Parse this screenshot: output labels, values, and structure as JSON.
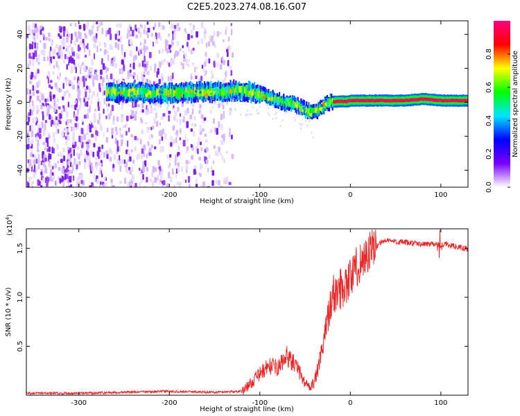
{
  "title": "C2E5.2023.274.08.16.G07",
  "chart_data": [
    {
      "type": "heatmap",
      "xlabel": "Height of straight line (km)",
      "ylabel": "Frequency (Hz)",
      "xlim": [
        -358,
        130
      ],
      "ylim": [
        -50,
        48
      ],
      "x_ticks": [
        -300,
        -200,
        -100,
        0,
        100
      ],
      "x_tick_labels": [
        "-300",
        "-200",
        "-100",
        "0",
        "100"
      ],
      "y_ticks": [
        -40,
        -20,
        0,
        20,
        40
      ],
      "y_tick_labels": [
        "-40",
        "-20",
        "0",
        "20",
        "40"
      ],
      "grid": false,
      "colorbar": {
        "label": "Normalized spectral amplitude",
        "range": [
          0.0,
          1.0
        ],
        "ticks": [
          0.0,
          0.2,
          0.4,
          0.6,
          0.8
        ],
        "tick_labels": [
          "0.0",
          "0.2",
          "0.4",
          "0.6",
          "0.8"
        ],
        "colors": [
          "#ffffff",
          "#7a00ff",
          "#0000ff",
          "#00e5ff",
          "#00ff00",
          "#ffff00",
          "#ff0000",
          "#ff007f"
        ]
      },
      "ridge_series": {
        "name": "",
        "x": [
          -270,
          -240,
          -210,
          -180,
          -150,
          -130,
          -110,
          -90,
          -75,
          -62,
          -55,
          -48,
          -42,
          -35,
          -25,
          -15,
          -5,
          0,
          20,
          40,
          60,
          80,
          100,
          130
        ],
        "y": [
          6,
          6,
          5,
          6,
          6,
          7,
          6,
          3,
          0,
          -1,
          -3,
          -5,
          -6,
          -4,
          0,
          0.5,
          0.5,
          1,
          1,
          1,
          1,
          2,
          1,
          1
        ]
      },
      "scatter_noise_region": {
        "x_range": [
          -358,
          -130
        ],
        "y_range": [
          -50,
          48
        ]
      }
    },
    {
      "type": "line",
      "xlabel": "Height of straight line (km)",
      "ylabel": "SNR (10 * v/v)",
      "y_multiplier_label": "(x10",
      "y_multiplier_exponent": "4",
      "y_multiplier_close": ")",
      "xlim": [
        -358,
        130
      ],
      "ylim": [
        0,
        1.7
      ],
      "x_ticks": [
        -300,
        -200,
        -100,
        0,
        100
      ],
      "x_tick_labels": [
        "-300",
        "-200",
        "-100",
        "0",
        "100"
      ],
      "y_ticks": [
        0.5,
        1.0,
        1.5
      ],
      "y_tick_labels": [
        "0.5",
        "1.0",
        "1.5"
      ],
      "grid": false,
      "series": [
        {
          "name": "",
          "color": "#ee2222",
          "x": [
            -358,
            -300,
            -250,
            -200,
            -150,
            -120,
            -110,
            -100,
            -90,
            -80,
            -70,
            -60,
            -50,
            -45,
            -40,
            -35,
            -30,
            -25,
            -20,
            -10,
            0,
            10,
            20,
            30,
            40,
            60,
            80,
            90,
            95,
            100,
            105,
            110,
            120,
            130
          ],
          "y": [
            0.02,
            0.02,
            0.03,
            0.04,
            0.03,
            0.04,
            0.12,
            0.22,
            0.3,
            0.28,
            0.4,
            0.3,
            0.12,
            0.1,
            0.12,
            0.3,
            0.5,
            0.8,
            1.0,
            1.1,
            1.2,
            1.35,
            1.45,
            1.55,
            1.58,
            1.56,
            1.54,
            1.55,
            1.55,
            1.52,
            1.55,
            1.53,
            1.51,
            1.49
          ]
        }
      ]
    }
  ]
}
